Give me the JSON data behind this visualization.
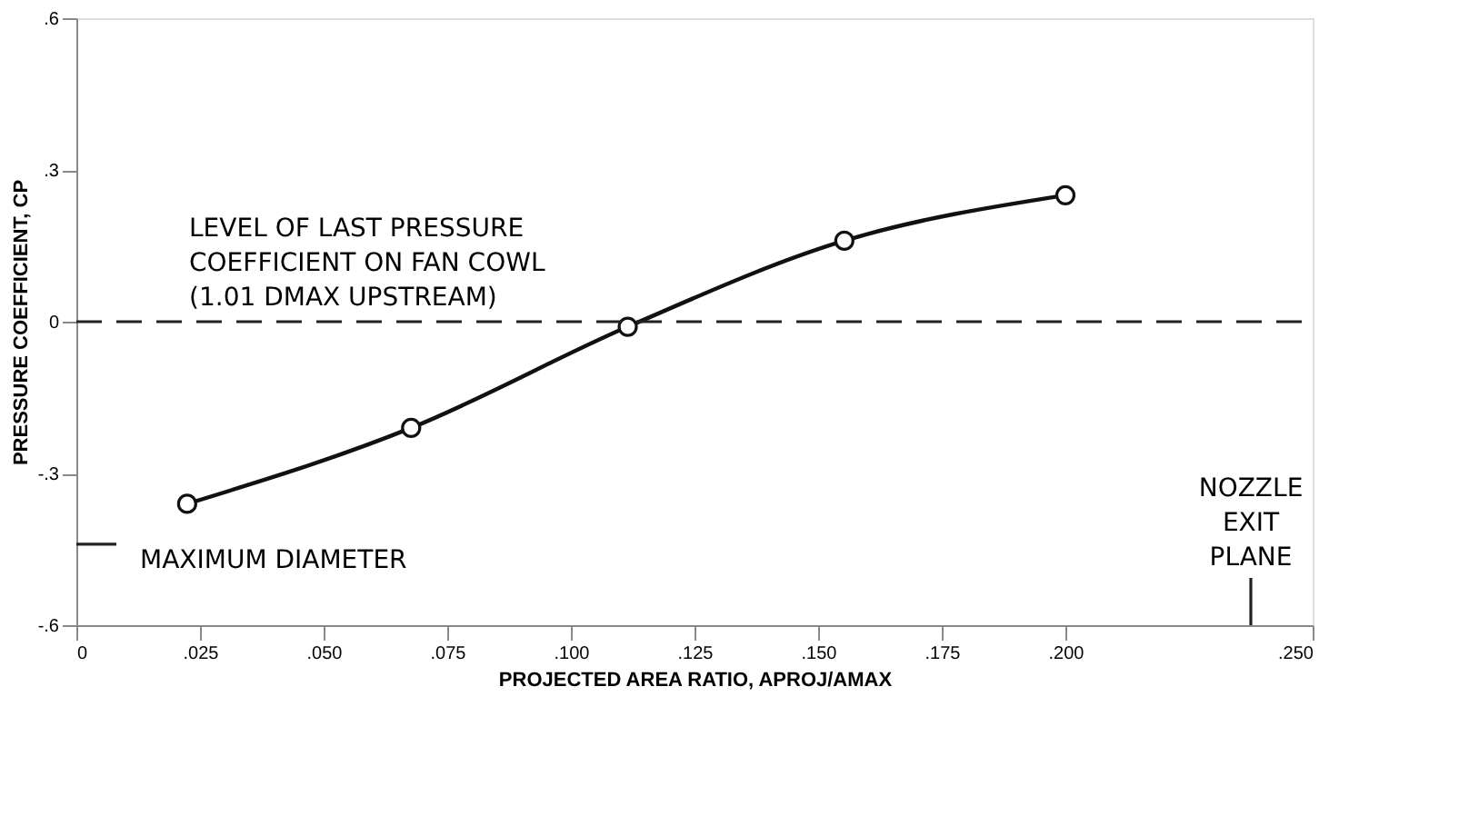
{
  "chart_data": {
    "type": "line",
    "xlabel": "PROJECTED AREA RATIO, APROJ/AMAX",
    "ylabel": "PRESSURE COEFFICIENT, CP",
    "x": [
      0.0224,
      0.0677,
      0.1115,
      0.1553,
      0.2
    ],
    "series": [
      {
        "color": "#111111",
        "values": [
          -0.36,
          -0.21,
          -0.01,
          0.16,
          0.25
        ]
      }
    ],
    "marker": "circle",
    "line_style": "solid",
    "xlim": [
      0,
      0.25
    ],
    "ylim": [
      -0.6,
      0.6
    ],
    "xticks": [
      {
        "value": 0,
        "label": "0"
      },
      {
        "value": 0.025,
        "label": ".025"
      },
      {
        "value": 0.05,
        "label": ".050"
      },
      {
        "value": 0.075,
        "label": ".075"
      },
      {
        "value": 0.1,
        "label": ".100"
      },
      {
        "value": 0.125,
        "label": ".125"
      },
      {
        "value": 0.15,
        "label": ".150"
      },
      {
        "value": 0.175,
        "label": ".175"
      },
      {
        "value": 0.2,
        "label": ".200"
      },
      {
        "value": 0.25,
        "label": ".250"
      }
    ],
    "yticks": [
      {
        "value": -0.6,
        "label": "-.6"
      },
      {
        "value": -0.3,
        "label": "-.3"
      },
      {
        "value": 0,
        "label": "0"
      },
      {
        "value": 0.3,
        "label": ".3"
      },
      {
        "value": 0.6,
        "label": ".6"
      }
    ],
    "ref_lines": [
      {
        "axis": "y",
        "value": 0,
        "label": "LEVEL OF LAST PRESSURE COEFFICIENT ON FAN COWL (1.01 DMAX UPSTREAM)",
        "line_style": "dashed"
      },
      {
        "axis": "y",
        "value": -0.44,
        "label": "MAXIMUM DIAMETER"
      },
      {
        "axis": "x",
        "value": 0.2375,
        "label": "NOZZLE EXIT PLANE"
      }
    ],
    "grid": false
  }
}
